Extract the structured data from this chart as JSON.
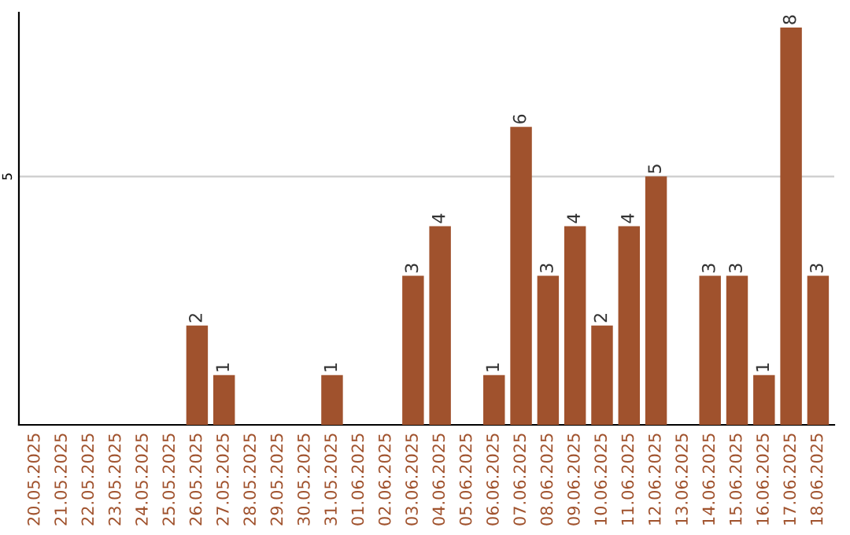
{
  "chart_data": {
    "type": "bar",
    "categories": [
      "20.05.2025",
      "21.05.2025",
      "22.05.2025",
      "23.05.2025",
      "24.05.2025",
      "25.05.2025",
      "26.05.2025",
      "27.05.2025",
      "28.05.2025",
      "29.05.2025",
      "30.05.2025",
      "31.05.2025",
      "01.06.2025",
      "02.06.2025",
      "03.06.2025",
      "04.06.2025",
      "05.06.2025",
      "06.06.2025",
      "07.06.2025",
      "08.06.2025",
      "09.06.2025",
      "10.06.2025",
      "11.06.2025",
      "12.06.2025",
      "13.06.2025",
      "14.06.2025",
      "15.06.2025",
      "16.06.2025",
      "17.06.2025",
      "18.06.2025"
    ],
    "values": [
      0,
      0,
      0,
      0,
      0,
      0,
      2,
      1,
      0,
      0,
      0,
      1,
      0,
      0,
      3,
      4,
      0,
      1,
      6,
      3,
      4,
      2,
      4,
      5,
      0,
      3,
      3,
      1,
      8,
      3
    ],
    "value_labels": [
      null,
      null,
      null,
      null,
      null,
      null,
      "2",
      "1",
      null,
      null,
      null,
      "1",
      null,
      null,
      "3",
      "4",
      null,
      "1",
      "6",
      "3",
      "4",
      "2",
      "4",
      "5",
      null,
      "3",
      "3",
      "1",
      "8",
      "3"
    ],
    "color": "#a0522d",
    "ylim": [
      0,
      8.3
    ],
    "yticks": [
      5
    ],
    "grid": "y"
  }
}
